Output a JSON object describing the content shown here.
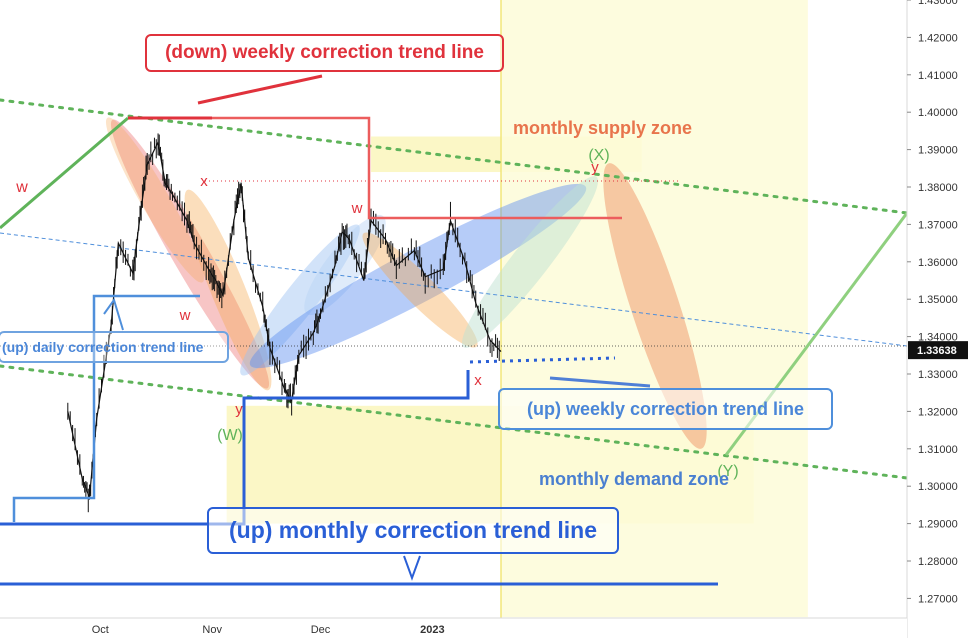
{
  "chart_data": {
    "type": "line",
    "symbol_hint": "FX pair daily candles (TradingView)",
    "price_axis": {
      "ticks": [
        "1.43000",
        "1.42000",
        "1.41000",
        "1.40000",
        "1.39000",
        "1.38000",
        "1.37000",
        "1.36000",
        "1.35000",
        "1.34000",
        "1.33000",
        "1.32000",
        "1.31000",
        "1.30000",
        "1.29000",
        "1.28000",
        "1.27000"
      ],
      "ylim": [
        1.265,
        1.4305
      ],
      "current_price": "1.33638",
      "current_price_value": 1.33638
    },
    "time_axis": {
      "ticks": [
        "Oct",
        "Nov",
        "Dec",
        "2023"
      ]
    },
    "price_series": {
      "name": "",
      "x": [
        "2022-09-22",
        "2022-09-26",
        "2022-09-28",
        "2022-09-30",
        "2022-10-04",
        "2022-10-06",
        "2022-10-10",
        "2022-10-12",
        "2022-10-14",
        "2022-10-17",
        "2022-10-19",
        "2022-10-21",
        "2022-10-25",
        "2022-10-27",
        "2022-10-31",
        "2022-11-02",
        "2022-11-04",
        "2022-11-07",
        "2022-11-09",
        "2022-11-11",
        "2022-11-15",
        "2022-11-17",
        "2022-11-21",
        "2022-11-23",
        "2022-11-25",
        "2022-11-29",
        "2022-12-01",
        "2022-12-05",
        "2022-12-07",
        "2022-12-09",
        "2022-12-13",
        "2022-12-15",
        "2022-12-19",
        "2022-12-22",
        "2022-12-27",
        "2022-12-30",
        "2023-01-04",
        "2023-01-06",
        "2023-01-10",
        "2023-01-13",
        "2023-01-17",
        "2023-01-20"
      ],
      "close": [
        1.32,
        1.302,
        1.297,
        1.318,
        1.343,
        1.365,
        1.357,
        1.372,
        1.386,
        1.392,
        1.381,
        1.378,
        1.371,
        1.365,
        1.358,
        1.355,
        1.351,
        1.371,
        1.381,
        1.361,
        1.348,
        1.337,
        1.326,
        1.323,
        1.335,
        1.341,
        1.346,
        1.359,
        1.368,
        1.366,
        1.355,
        1.371,
        1.366,
        1.359,
        1.363,
        1.356,
        1.358,
        1.371,
        1.36,
        1.349,
        1.339,
        1.336
      ]
    },
    "zones": [
      {
        "label": "monthly supply zone",
        "from": "2022-12-15",
        "to": "2023-02-28",
        "low": 1.384,
        "high": 1.3935
      },
      {
        "label": "monthly demand zone",
        "from": "2022-11-05",
        "to": "2023-03-31",
        "low": 1.29,
        "high": 1.3215
      },
      {
        "label": "",
        "from": "2023-01-20",
        "to": "2023-04-15",
        "low": 1.265,
        "high": 1.4305
      }
    ],
    "wave_labels": [
      "w",
      "x",
      "w",
      "y",
      "(W)",
      "w",
      "y",
      "x",
      "(X)",
      "y",
      "(Y)"
    ],
    "annotations": [
      "(down) weekly correction trend line",
      "(up) daily correction trend line",
      "(up) weekly correction trend line",
      "(up) monthly correction trend line"
    ],
    "grid": false,
    "colors": {
      "candle": "#111111",
      "down_trend": "#e0323c",
      "up_trend": "#2a5fd6",
      "light_blue": "#4f8fdb",
      "green": "#5fb35a",
      "supply_text": "#e8744c",
      "demand_text": "#4a7fd0",
      "zone_fill": "#fbf6c0",
      "wave_red": "#e0323c",
      "wave_green": "#5fb35a"
    }
  }
}
